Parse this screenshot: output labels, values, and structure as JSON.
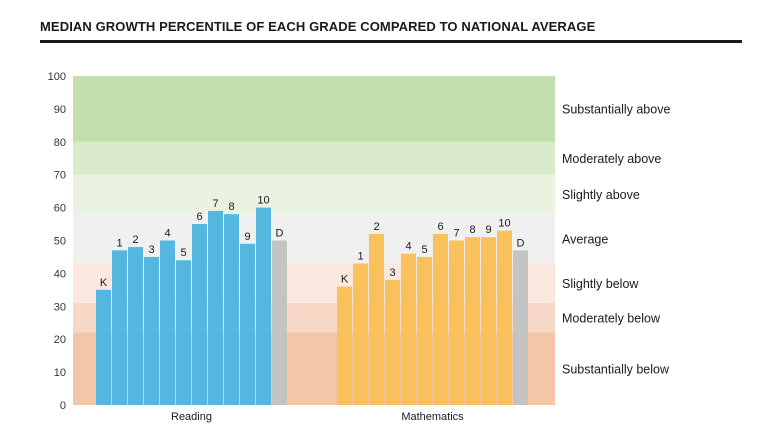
{
  "title": "MEDIAN GROWTH PERCENTILE OF EACH GRADE COMPARED TO NATIONAL AVERAGE",
  "chart_data": {
    "type": "bar",
    "ylim": [
      0,
      100
    ],
    "yticks": [
      "0",
      "10",
      "20",
      "30",
      "40",
      "50",
      "60",
      "70",
      "80",
      "90",
      "100"
    ],
    "bands": [
      {
        "label": "Substantially above",
        "from": 80,
        "to": 100,
        "color": "#c3dfad"
      },
      {
        "label": "Moderately above",
        "from": 70,
        "to": 80,
        "color": "#d9ebca"
      },
      {
        "label": "Slightly above",
        "from": 58,
        "to": 70,
        "color": "#e9f3e0"
      },
      {
        "label": "Average",
        "from": 43,
        "to": 58,
        "color": "#f0f0f0"
      },
      {
        "label": "Slightly below",
        "from": 31,
        "to": 43,
        "color": "#fbe8de"
      },
      {
        "label": "Moderately below",
        "from": 22,
        "to": 31,
        "color": "#f7d8c6"
      },
      {
        "label": "Substantially below",
        "from": 0,
        "to": 22,
        "color": "#f4c6a8"
      }
    ],
    "groups": [
      {
        "name": "Reading",
        "color": "#55b7e0",
        "categories": [
          "K",
          "1",
          "2",
          "3",
          "4",
          "5",
          "6",
          "7",
          "8",
          "9",
          "10",
          "D"
        ],
        "values": [
          35,
          47,
          48,
          45,
          50,
          44,
          55,
          59,
          58,
          49,
          60,
          50
        ]
      },
      {
        "name": "Mathematics",
        "color": "#f8c15c",
        "categories": [
          "K",
          "1",
          "2",
          "3",
          "4",
          "5",
          "6",
          "7",
          "8",
          "9",
          "10",
          "D"
        ],
        "values": [
          36,
          43,
          52,
          38,
          46,
          45,
          52,
          50,
          51,
          51,
          53,
          47
        ]
      }
    ],
    "district_color": "#c3c3c3"
  }
}
